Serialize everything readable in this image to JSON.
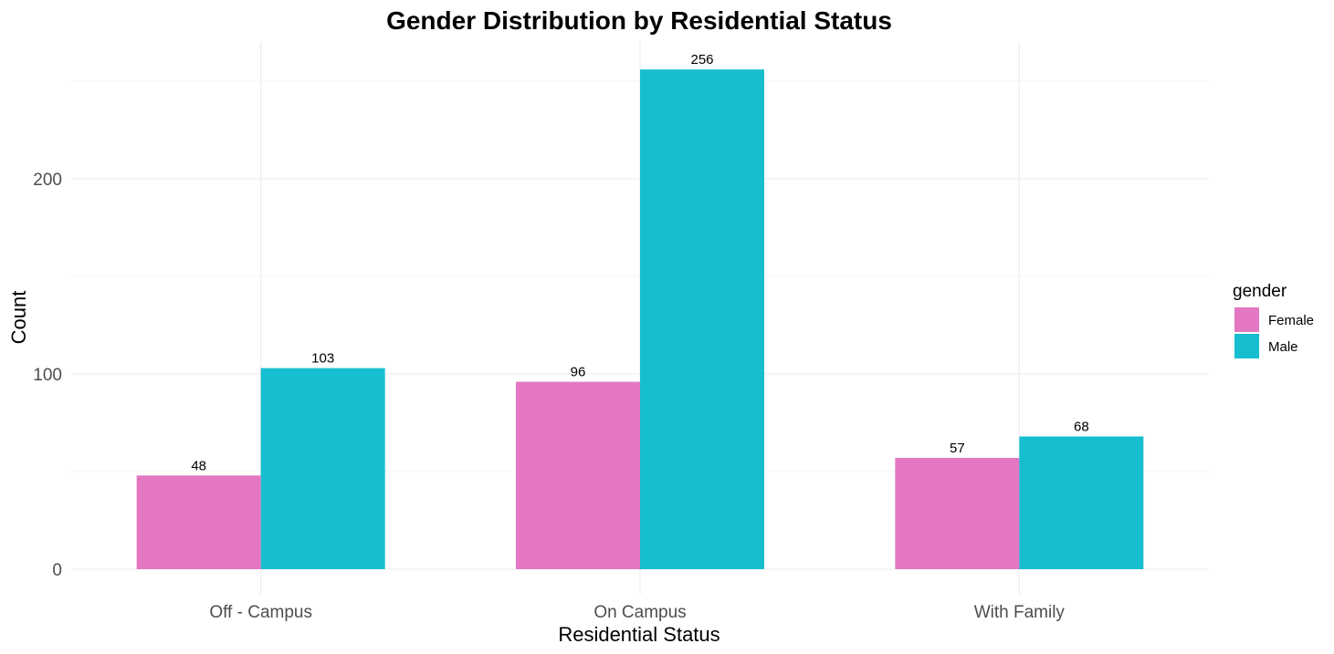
{
  "chart_data": {
    "type": "bar",
    "title": "Gender Distribution by Residential Status",
    "xlabel": "Residential Status",
    "ylabel": "Count",
    "categories": [
      "Off - Campus",
      "On Campus",
      "With Family"
    ],
    "series": [
      {
        "name": "Female",
        "values": [
          48,
          96,
          57
        ],
        "color": "#E377C2"
      },
      {
        "name": "Male",
        "values": [
          103,
          256,
          68
        ],
        "color": "#17BECF"
      }
    ],
    "ylim": [
      0,
      270
    ],
    "yticks": [
      0,
      100,
      200
    ],
    "y_tick_labels": [
      "0",
      "100",
      "200"
    ],
    "grid": true,
    "legend": {
      "title": "gender",
      "position": "right"
    }
  }
}
